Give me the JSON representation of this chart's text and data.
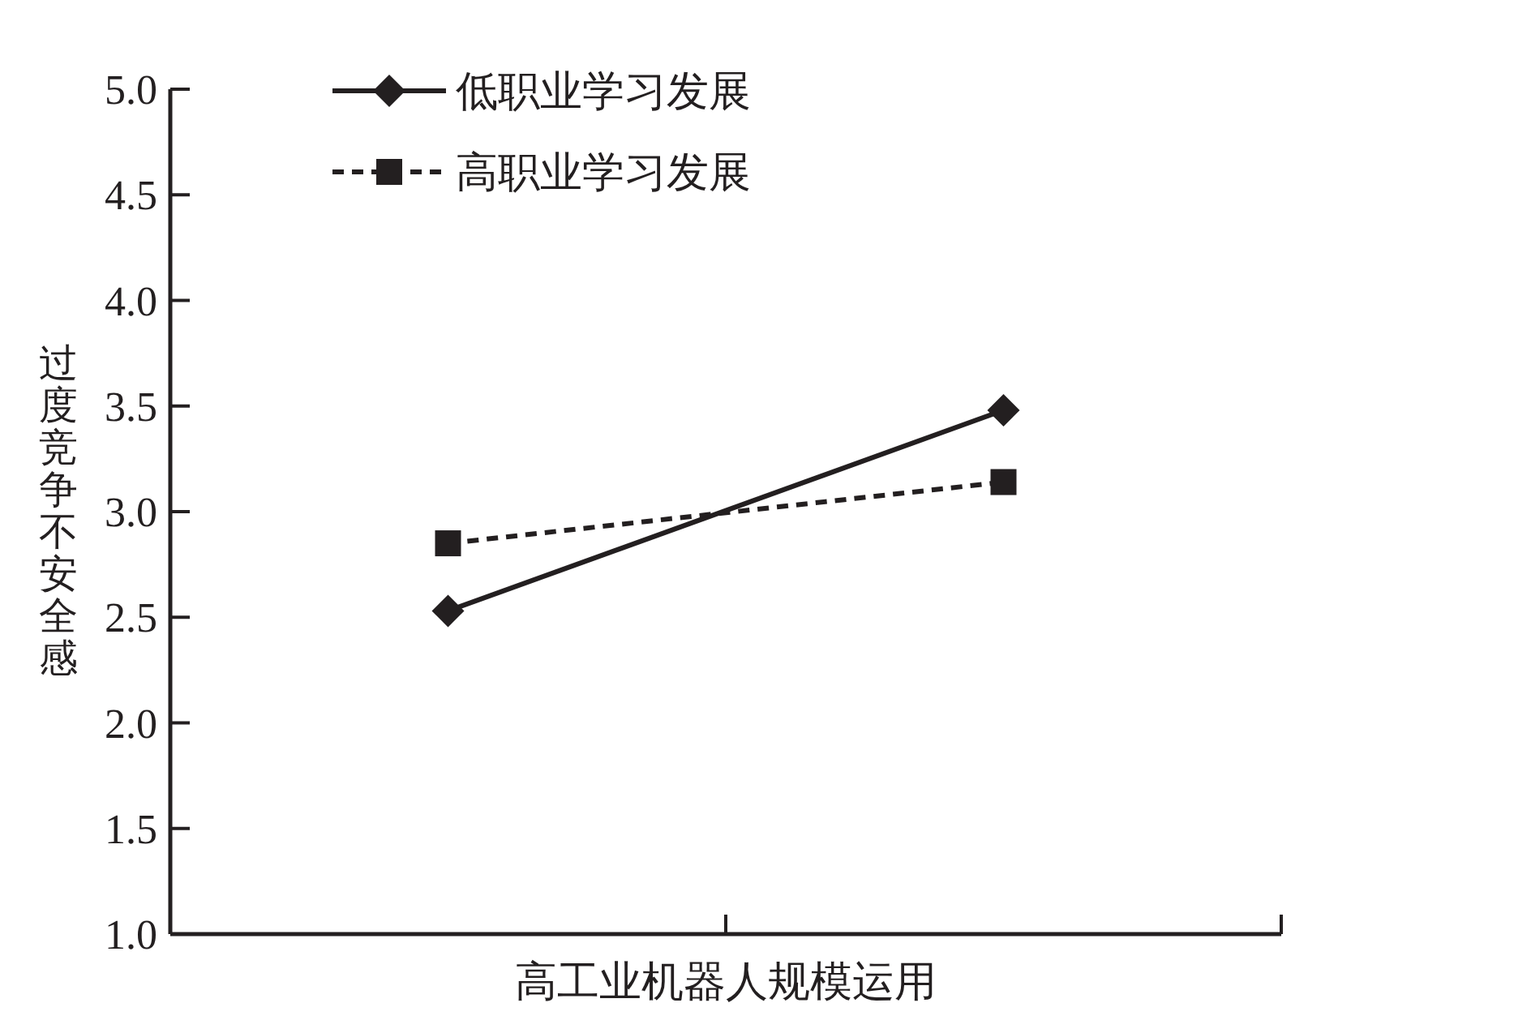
{
  "chart_data": {
    "type": "line",
    "xlabel": "高工业机器人规模运用",
    "ylabel": "过度竞争不安全感",
    "categories": [
      null,
      null
    ],
    "ylim": [
      1.0,
      5.0
    ],
    "yticks": [
      {
        "value": 1.0,
        "label": "1.0"
      },
      {
        "value": 1.5,
        "label": "1.5"
      },
      {
        "value": 2.0,
        "label": "2.0"
      },
      {
        "value": 2.5,
        "label": "2.5"
      },
      {
        "value": 3.0,
        "label": "3.0"
      },
      {
        "value": 3.5,
        "label": "3.5"
      },
      {
        "value": 4.0,
        "label": "4.0"
      },
      {
        "value": 4.5,
        "label": "4.5"
      },
      {
        "value": 5.0,
        "label": "5.0"
      }
    ],
    "legend": "top",
    "grid": false,
    "series": [
      {
        "name": "低职业学习发展",
        "color": "#231f20",
        "marker": "diamond",
        "line_style": "solid",
        "values": [
          2.53,
          3.48
        ]
      },
      {
        "name": "高职业学习发展",
        "color": "#231f20",
        "marker": "square",
        "line_style": "dashed",
        "values": [
          2.85,
          3.14
        ]
      }
    ]
  }
}
